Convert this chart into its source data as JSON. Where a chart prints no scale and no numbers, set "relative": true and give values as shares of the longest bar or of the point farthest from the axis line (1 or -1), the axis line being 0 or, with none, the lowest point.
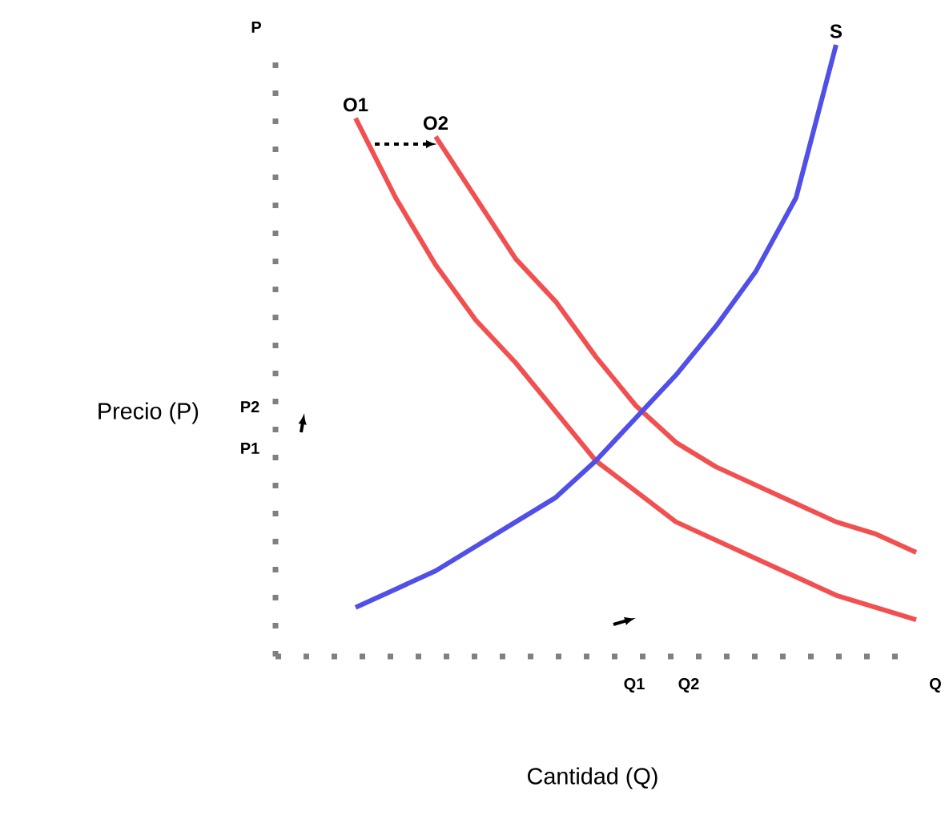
{
  "chart_data": {
    "type": "line",
    "relative": true,
    "xlabel": "Cantidad (Q)",
    "ylabel": "Precio (P)",
    "categories": [
      null,
      null,
      null,
      null,
      null,
      null,
      null,
      null,
      null,
      null,
      null,
      null,
      null,
      null,
      null,
      null,
      null
    ],
    "series": [
      {
        "name": "O1",
        "color": "#f25050",
        "values": [
          null,
          null,
          0.88,
          0.75,
          0.64,
          0.55,
          0.48,
          0.4,
          0.32,
          0.27,
          0.22,
          0.19,
          0.16,
          0.13,
          0.1,
          0.08,
          0.06
        ]
      },
      {
        "name": "O2",
        "color": "#f25050",
        "values": [
          null,
          null,
          null,
          null,
          0.85,
          0.75,
          0.65,
          0.58,
          0.49,
          0.41,
          0.35,
          0.31,
          0.28,
          0.25,
          0.22,
          0.2,
          0.17
        ]
      },
      {
        "name": "S",
        "color": "#5050e8",
        "values": [
          null,
          null,
          0.08,
          0.11,
          0.14,
          0.18,
          0.22,
          0.26,
          0.32,
          0.39,
          0.46,
          0.54,
          0.63,
          0.75,
          1.0,
          null,
          null
        ]
      }
    ],
    "annotations": [
      "P",
      "P2",
      "P1",
      "Q1",
      "Q2",
      "Q"
    ],
    "marker": "none",
    "line_style": "solid"
  }
}
